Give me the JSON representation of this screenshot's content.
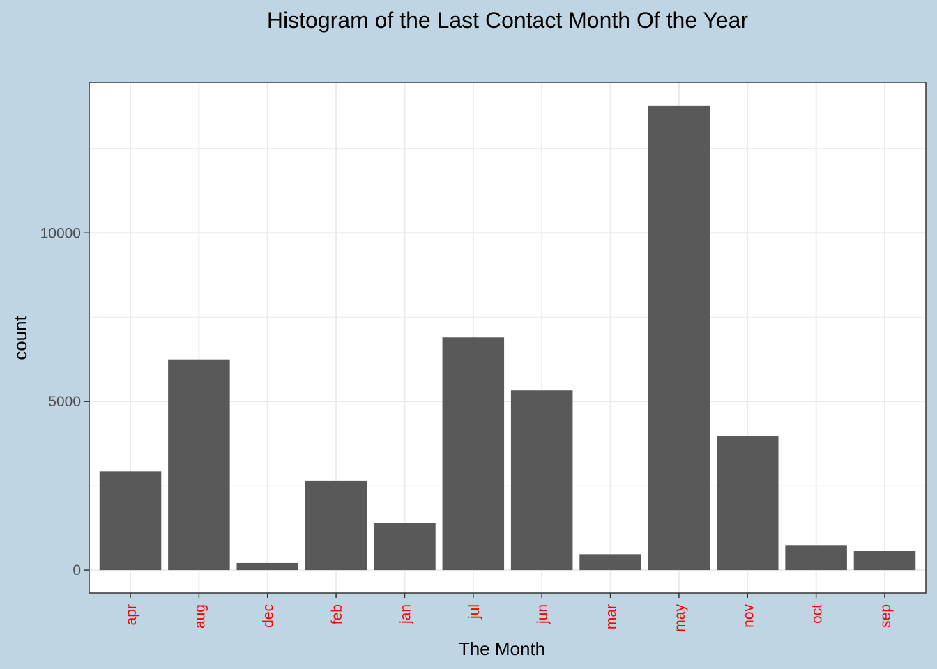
{
  "chart_data": {
    "type": "bar",
    "title": "Histogram of the Last Contact Month Of the Year",
    "xlabel": "The Month",
    "ylabel": "count",
    "categories": [
      "apr",
      "aug",
      "dec",
      "feb",
      "jan",
      "jul",
      "jun",
      "mar",
      "may",
      "nov",
      "oct",
      "sep"
    ],
    "values": [
      2930,
      6250,
      210,
      2650,
      1400,
      6900,
      5330,
      470,
      13770,
      3970,
      740,
      580
    ],
    "ylim": [
      -680,
      14470
    ],
    "yticks": [
      0,
      5000,
      10000
    ],
    "ytick_labels": [
      "0",
      "5000",
      "10000"
    ],
    "grid": true,
    "legend": "none",
    "colors": {
      "bar": "#595959",
      "xtick_label": "#ff0000",
      "background": "#bfd5e4",
      "panel": "#ffffff",
      "grid": "#ebebeb"
    }
  }
}
